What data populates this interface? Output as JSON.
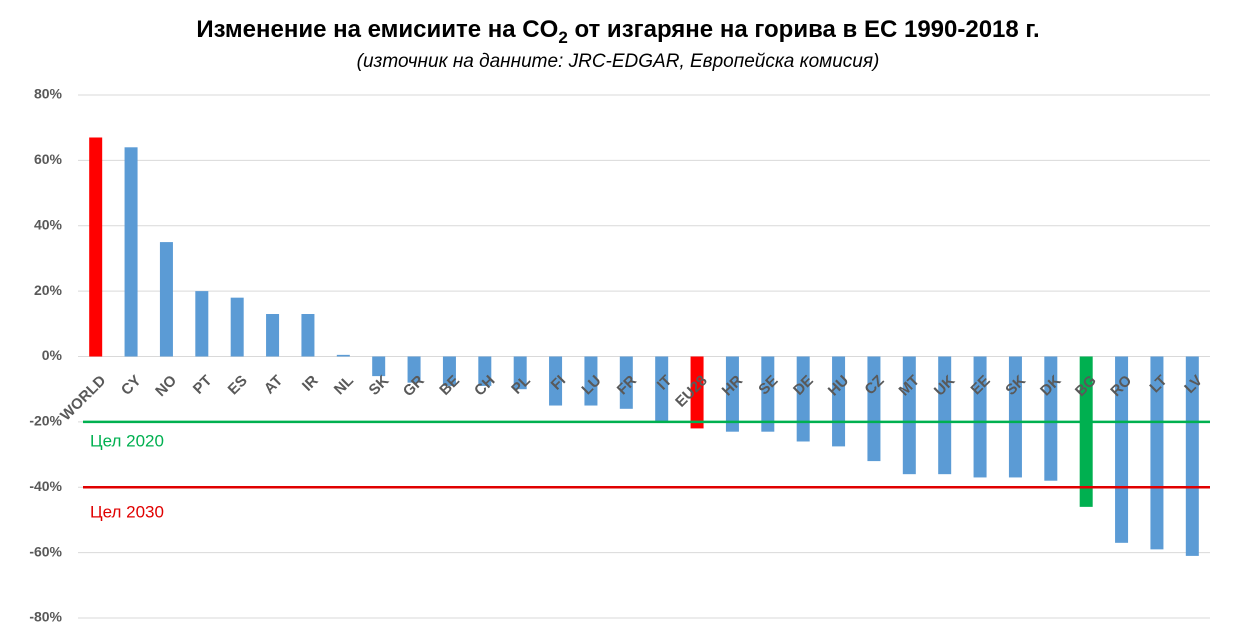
{
  "chart_data": {
    "type": "bar",
    "title": [
      "Изменение на емисиите на CO",
      "2",
      " от изгаряне на горива в ЕС 1990-2018 г."
    ],
    "subtitle": "(източник на данните: JRC-EDGAR, Европейска комисия)",
    "categories": [
      "WORLD",
      "CY",
      "NO",
      "PT",
      "ES",
      "AT",
      "IR",
      "NL",
      "SK",
      "GR",
      "BE",
      "CH",
      "PL",
      "FI",
      "LU",
      "FR",
      "IT",
      "EU28",
      "HR",
      "SE",
      "DE",
      "HU",
      "CZ",
      "MT",
      "UK",
      "EE",
      "SK",
      "DK",
      "BG",
      "RO",
      "LT",
      "LV"
    ],
    "values": [
      67,
      64,
      35,
      20,
      18,
      13,
      13,
      0.5,
      -6,
      -8,
      -9,
      -9,
      -10,
      -15,
      -15,
      -16,
      -20,
      -22,
      -23,
      -23,
      -26,
      -27.5,
      -32,
      -36,
      -36,
      -37,
      -37,
      -38,
      -46,
      -57,
      -59,
      -61
    ],
    "colors": [
      "#ff0000",
      "#5b9bd5",
      "#5b9bd5",
      "#5b9bd5",
      "#5b9bd5",
      "#5b9bd5",
      "#5b9bd5",
      "#5b9bd5",
      "#5b9bd5",
      "#5b9bd5",
      "#5b9bd5",
      "#5b9bd5",
      "#5b9bd5",
      "#5b9bd5",
      "#5b9bd5",
      "#5b9bd5",
      "#5b9bd5",
      "#ff0000",
      "#5b9bd5",
      "#5b9bd5",
      "#5b9bd5",
      "#5b9bd5",
      "#5b9bd5",
      "#5b9bd5",
      "#5b9bd5",
      "#5b9bd5",
      "#5b9bd5",
      "#5b9bd5",
      "#00b050",
      "#5b9bd5",
      "#5b9bd5",
      "#5b9bd5"
    ],
    "ylim": [
      -80,
      80
    ],
    "yticks": [
      {
        "value": -80,
        "label": "-80%"
      },
      {
        "value": -60,
        "label": "-60%"
      },
      {
        "value": -40,
        "label": "-40%"
      },
      {
        "value": -20,
        "label": "-20%"
      },
      {
        "value": 0,
        "label": "0%"
      },
      {
        "value": 20,
        "label": "20%"
      },
      {
        "value": 40,
        "label": "40%"
      },
      {
        "value": 60,
        "label": "60%"
      },
      {
        "value": 80,
        "label": "80%"
      }
    ],
    "grid": true,
    "reference_lines": [
      {
        "label": "Цел 2020",
        "value": -20,
        "color": "#00b050"
      },
      {
        "label": "Цел 2030",
        "value": -40,
        "color": "#e00000"
      }
    ]
  }
}
